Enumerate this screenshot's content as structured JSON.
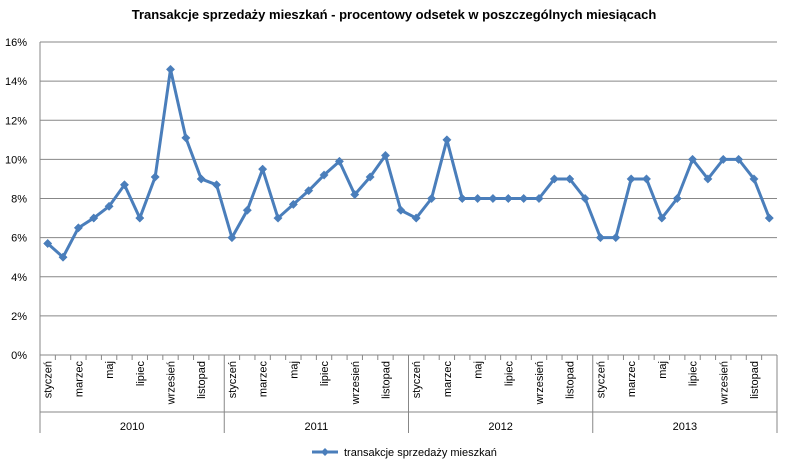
{
  "chart_data": {
    "type": "line",
    "title": "Transakcje sprzedaży mieszkań - procentowy odsetek w poszczególnych miesiącach",
    "xlabel": "",
    "ylabel": "",
    "ylim": [
      0,
      16
    ],
    "y_ticks": [
      "0%",
      "2%",
      "4%",
      "6%",
      "8%",
      "10%",
      "12%",
      "14%",
      "16%"
    ],
    "grid": "horizontal",
    "legend_position": "bottom",
    "years": [
      "2010",
      "2011",
      "2012",
      "2013"
    ],
    "month_labels": [
      "styczeń",
      "",
      "marzec",
      "",
      "maj",
      "",
      "lipiec",
      "",
      "wrzesień",
      "",
      "listopad",
      ""
    ],
    "series": [
      {
        "name": "transakcje sprzedaży mieszkań",
        "color": "#4a7ebb",
        "values": [
          5.7,
          5.0,
          6.5,
          7.0,
          7.6,
          8.7,
          7.0,
          9.1,
          14.6,
          11.1,
          9.0,
          8.7,
          6.0,
          7.4,
          9.5,
          7.0,
          7.7,
          8.4,
          9.2,
          9.9,
          8.2,
          9.1,
          10.2,
          7.4,
          7.0,
          8.0,
          11.0,
          8.0,
          8.0,
          8.0,
          8.0,
          8.0,
          8.0,
          9.0,
          9.0,
          8.0,
          6.0,
          6.0,
          9.0,
          9.0,
          7.0,
          8.0,
          10.0,
          9.0,
          10.0,
          10.0,
          9.0,
          7.0
        ]
      }
    ]
  }
}
